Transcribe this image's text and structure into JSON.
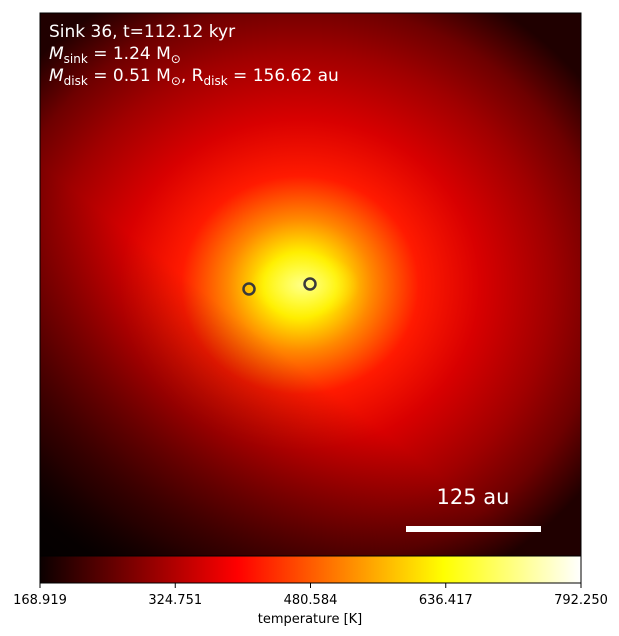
{
  "chart_data": {
    "type": "image",
    "annotations": [
      [
        "Sink 36, t=112.12 kyr"
      ],
      [
        "M",
        "sink",
        " = 1.24 M",
        "⊙"
      ],
      [
        "M",
        "disk",
        " = 0.51 M",
        "⊙",
        ", R",
        "disk",
        " = 156.62 au"
      ]
    ],
    "scale_bar_label": "125 au",
    "colorbar": {
      "label": "temperature [K]",
      "colormap": "hot",
      "xlim": [
        168.919,
        792.25
      ],
      "xticks": [
        168.919,
        324.751,
        480.584,
        636.417,
        {
          "value": 792.25,
          "label": "792.250"
        }
      ]
    }
  }
}
